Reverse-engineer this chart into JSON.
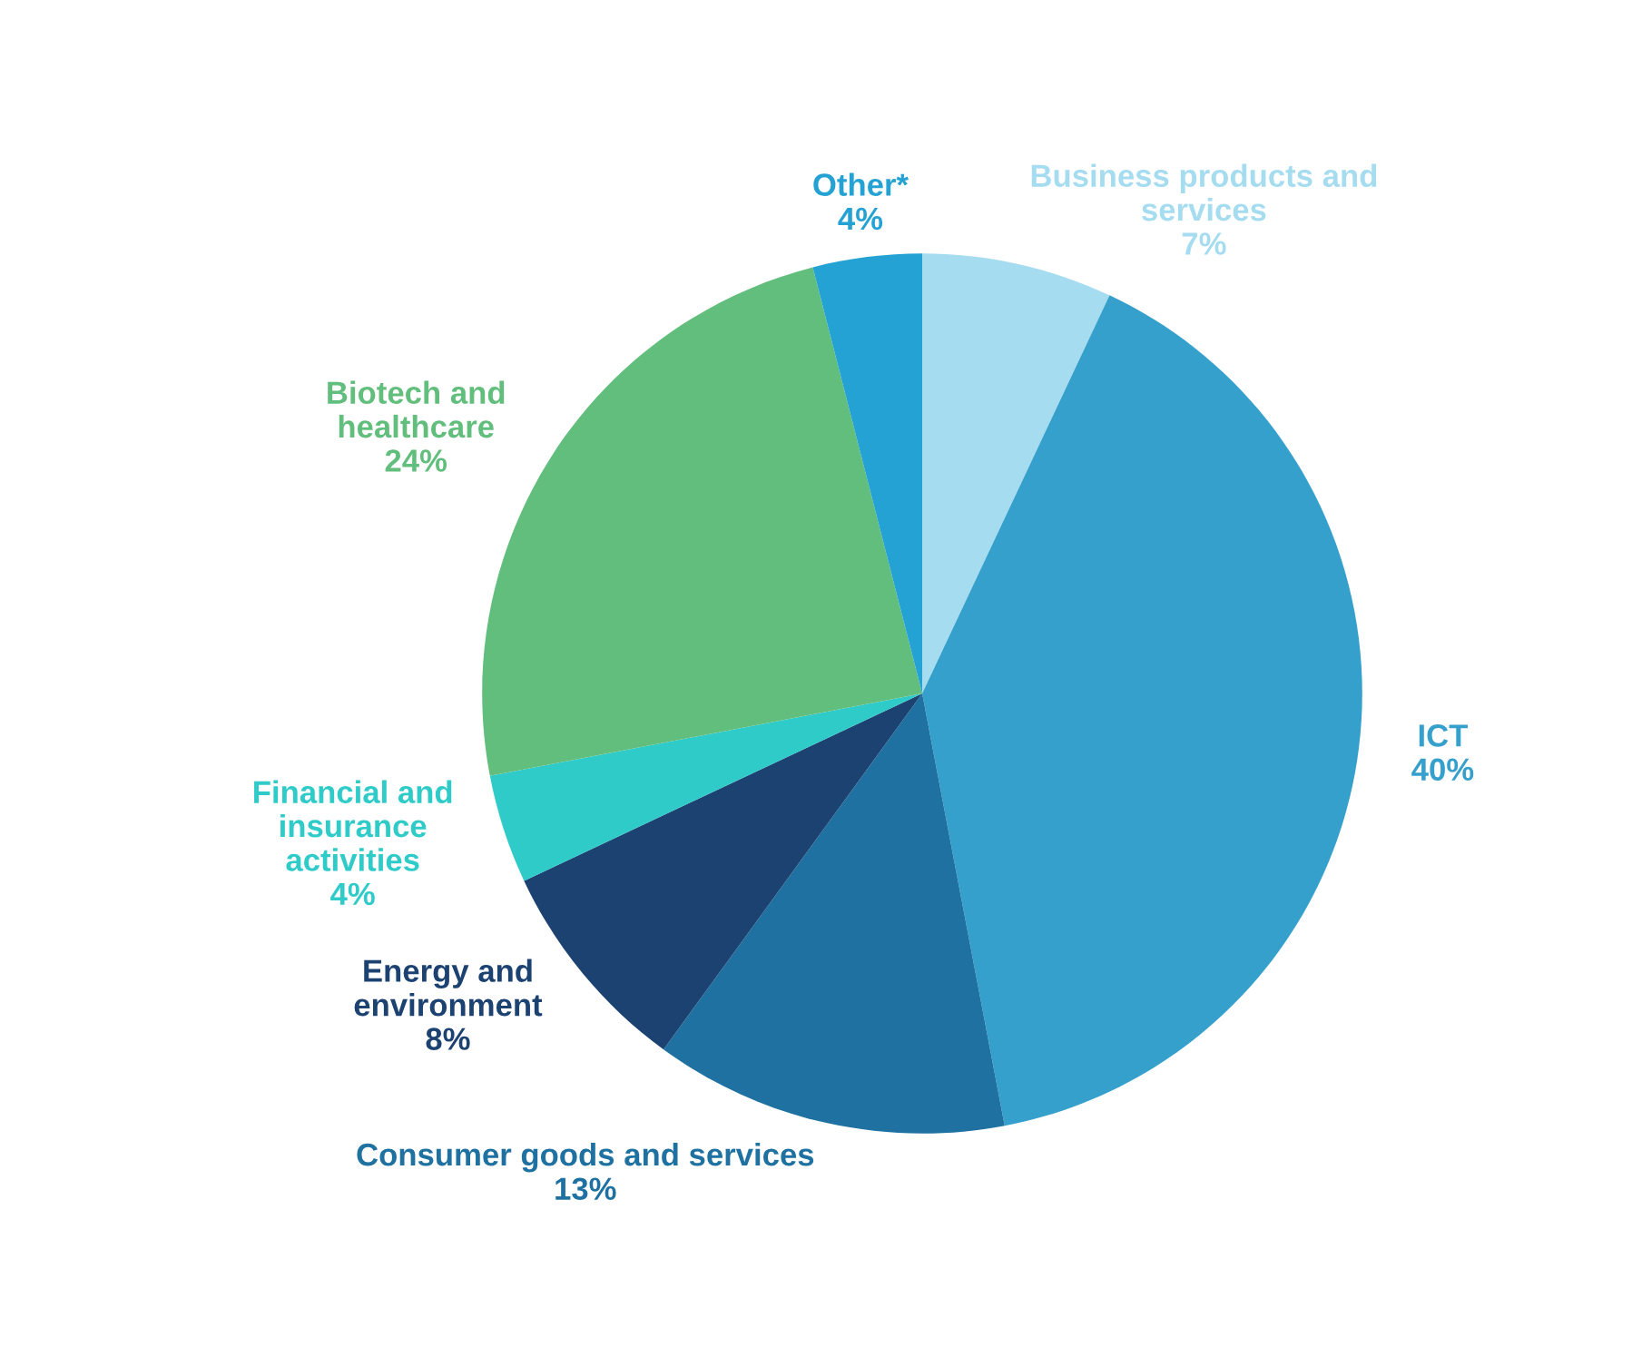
{
  "chart_data": {
    "type": "pie",
    "categories": [
      "Business products and\nservices",
      "ICT",
      "Consumer goods and services",
      "Energy and\nenvironment",
      "Financial and\ninsurance\nactivities",
      "Biotech and\nhealthcare",
      "Other*"
    ],
    "values": [
      7,
      40,
      13,
      8,
      4,
      24,
      4
    ],
    "colors": [
      "#a5dcf0",
      "#35a0cc",
      "#1e71a0",
      "#1c4272",
      "#2ecbc9",
      "#62be7c",
      "#25a2d4"
    ],
    "value_labels": [
      "7%",
      "40%",
      "13%",
      "8%",
      "4%",
      "24%",
      "4%"
    ]
  }
}
